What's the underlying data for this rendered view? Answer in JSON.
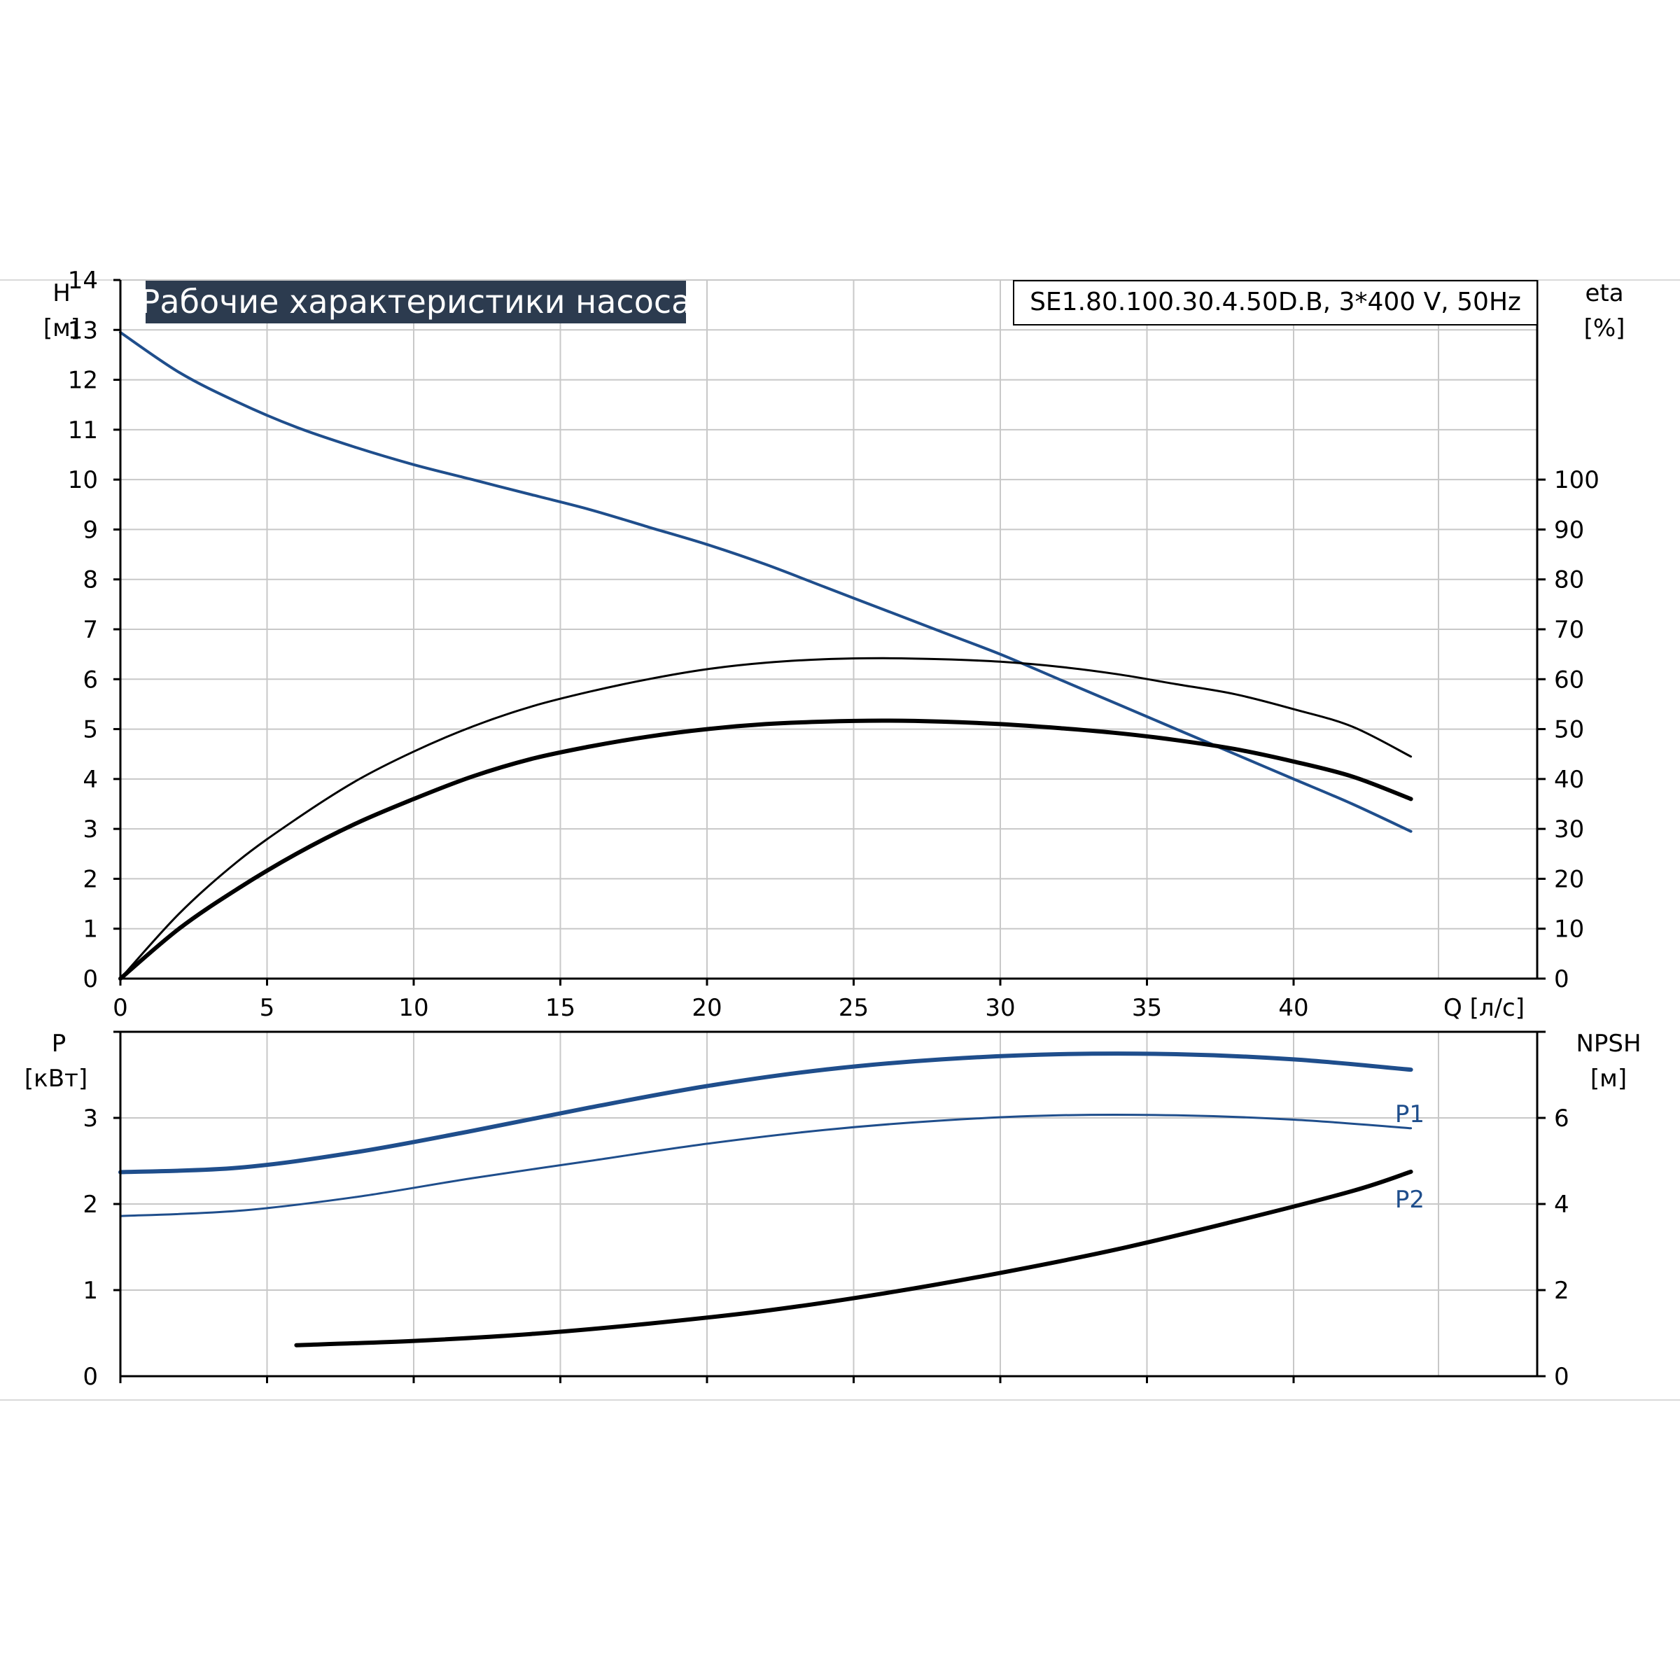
{
  "title": "Рабочие характеристики насоса",
  "model": "SE1.80.100.30.4.50D.B, 3*400 V, 50Hz",
  "colors": {
    "blue": "#1f4e8c",
    "black": "#000000",
    "title_bg": "#2c3b4f",
    "grid": "#c8c8c8"
  },
  "chart_data": [
    {
      "type": "line",
      "x_axis": {
        "label": "Q [л/с]",
        "range": [
          0,
          45
        ],
        "ticks": [
          0,
          5,
          10,
          15,
          20,
          25,
          30,
          35,
          40
        ]
      },
      "y_left": {
        "label_top": "H",
        "label_bottom": "[м]",
        "range": [
          0,
          14
        ],
        "ticks": [
          0,
          1,
          2,
          3,
          4,
          5,
          6,
          7,
          8,
          9,
          10,
          11,
          12,
          13,
          14
        ]
      },
      "y_right": {
        "label_top": "eta",
        "label_bottom": "[%]",
        "range": [
          0,
          140
        ],
        "ticks": [
          0,
          10,
          20,
          30,
          40,
          50,
          60,
          70,
          80,
          90,
          100
        ]
      },
      "grid": true,
      "series": [
        {
          "axis": "left",
          "color": "#1f4e8c",
          "width": 4,
          "x": [
            0,
            2,
            4,
            6,
            8,
            10,
            12,
            14,
            16,
            18,
            20,
            22,
            24,
            26,
            28,
            30,
            32,
            34,
            36,
            38,
            40,
            42,
            44
          ],
          "y": [
            12.95,
            12.15,
            11.55,
            11.05,
            10.65,
            10.3,
            10.0,
            9.7,
            9.4,
            9.05,
            8.7,
            8.3,
            7.85,
            7.4,
            6.95,
            6.5,
            6.0,
            5.5,
            5.0,
            4.5,
            4.0,
            3.5,
            2.95
          ]
        },
        {
          "axis": "right",
          "color": "#000000",
          "width": 3,
          "x": [
            0,
            2,
            4,
            6,
            8,
            10,
            12,
            14,
            16,
            18,
            20,
            22,
            24,
            26,
            28,
            30,
            32,
            34,
            36,
            38,
            40,
            42,
            44
          ],
          "y": [
            0,
            13,
            23.5,
            32,
            39.5,
            45.5,
            50.5,
            54.5,
            57.5,
            60,
            62,
            63.3,
            64,
            64.2,
            64,
            63.5,
            62.5,
            61,
            59,
            57,
            54,
            50.5,
            44.5
          ]
        },
        {
          "axis": "right",
          "color": "#000000",
          "width": 6,
          "x": [
            0,
            2,
            4,
            6,
            8,
            10,
            12,
            14,
            16,
            18,
            20,
            22,
            24,
            26,
            28,
            30,
            32,
            34,
            36,
            38,
            40,
            42,
            44
          ],
          "y": [
            0,
            10,
            18,
            25,
            31,
            36,
            40.5,
            44,
            46.5,
            48.5,
            50,
            51,
            51.5,
            51.7,
            51.5,
            51,
            50.2,
            49.2,
            47.8,
            46,
            43.5,
            40.5,
            36
          ]
        }
      ]
    },
    {
      "type": "line",
      "x_axis": {
        "range": [
          0,
          45
        ],
        "ticks": [
          0,
          5,
          10,
          15,
          20,
          25,
          30,
          35,
          40
        ]
      },
      "y_left": {
        "label_top": "P",
        "label_bottom": "[кВт]",
        "range": [
          0,
          4
        ],
        "ticks": [
          0,
          1,
          2,
          3
        ]
      },
      "y_right": {
        "label_top": "NPSH",
        "label_bottom": "[м]",
        "range": [
          0,
          8
        ],
        "ticks": [
          0,
          2,
          4,
          6
        ]
      },
      "grid": true,
      "series": [
        {
          "name": "P1",
          "axis": "left",
          "color": "#1f4e8c",
          "width": 6,
          "x": [
            0,
            4,
            8,
            12,
            16,
            20,
            24,
            28,
            32,
            36,
            40,
            44
          ],
          "y": [
            2.37,
            2.42,
            2.6,
            2.85,
            3.12,
            3.37,
            3.56,
            3.68,
            3.74,
            3.74,
            3.68,
            3.56
          ]
        },
        {
          "name": "P2",
          "axis": "left",
          "color": "#1f4e8c",
          "width": 3,
          "x": [
            0,
            4,
            8,
            12,
            16,
            20,
            24,
            28,
            32,
            36,
            40,
            44
          ],
          "y": [
            1.86,
            1.92,
            2.08,
            2.3,
            2.5,
            2.7,
            2.86,
            2.97,
            3.03,
            3.03,
            2.98,
            2.88
          ]
        },
        {
          "axis": "right",
          "color": "#000000",
          "width": 6,
          "x": [
            6,
            10,
            14,
            18,
            22,
            26,
            30,
            34,
            38,
            42,
            44
          ],
          "y": [
            0.72,
            0.82,
            0.98,
            1.22,
            1.52,
            1.92,
            2.4,
            2.95,
            3.6,
            4.3,
            4.75
          ]
        }
      ]
    }
  ]
}
